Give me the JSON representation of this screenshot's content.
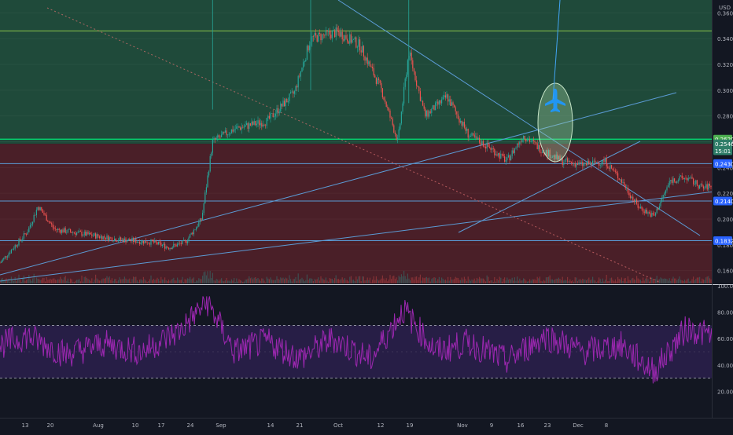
{
  "price_axis": {
    "unit": "USD",
    "ticks": [
      "0.3600",
      "0.3400",
      "0.3200",
      "0.3000",
      "0.2800",
      "0.2600",
      "0.2400",
      "0.2200",
      "0.2000",
      "0.1800",
      "0.1600"
    ],
    "badges": [
      {
        "price": 0.262,
        "text": "0.2620",
        "color": "#4caf50"
      },
      {
        "price": 0.2584,
        "text": "0.2546",
        "color": "#2e7d68"
      },
      {
        "price": 0.253,
        "text": "15:01",
        "color": "#2e7d68"
      },
      {
        "price": 0.243,
        "text": "0.2430",
        "color": "#2962ff"
      },
      {
        "price": 0.214,
        "text": "0.2140",
        "color": "#2962ff"
      },
      {
        "price": 0.1832,
        "text": "0.1832",
        "color": "#2962ff"
      }
    ]
  },
  "rsi_axis": {
    "ticks": [
      "100.00",
      "80.00",
      "60.00",
      "40.00",
      "20.00"
    ]
  },
  "time_axis": {
    "labels": [
      "13",
      "20",
      "Aug",
      "10",
      "17",
      "24",
      "Sep",
      "14",
      "21",
      "Oct",
      "12",
      "19",
      "Nov",
      "9",
      "16",
      "23",
      "Dec",
      "8"
    ]
  },
  "chart_data": [
    {
      "type": "candlestick",
      "ylim": [
        0.15,
        0.37
      ],
      "horizontal_levels": [
        0.346,
        0.262,
        0.243,
        0.214,
        0.1832
      ],
      "zones": [
        {
          "from": 0.2584,
          "to": 0.37,
          "color": "#1f4a3a"
        },
        {
          "from": 0.15,
          "to": 0.2584,
          "color": "#4a1f28"
        }
      ],
      "series": [
        {
          "values": [
            {
              "x": "Jul 08",
              "y": 0.166
            },
            {
              "x": "Jul 13",
              "y": 0.19
            },
            {
              "x": "Jul 15",
              "y": 0.21
            },
            {
              "x": "Jul 18",
              "y": 0.192
            },
            {
              "x": "Jul 24",
              "y": 0.188
            },
            {
              "x": "Jul 30",
              "y": 0.184
            },
            {
              "x": "Aug 05",
              "y": 0.182
            },
            {
              "x": "Aug 08",
              "y": 0.178
            },
            {
              "x": "Aug 11",
              "y": 0.182
            },
            {
              "x": "Aug 14",
              "y": 0.2
            },
            {
              "x": "Aug 16",
              "y": 0.26
            },
            {
              "x": "Aug 20",
              "y": 0.27
            },
            {
              "x": "Aug 26",
              "y": 0.276
            },
            {
              "x": "Aug 31",
              "y": 0.298
            },
            {
              "x": "Sep 03",
              "y": 0.34
            },
            {
              "x": "Sep 08",
              "y": 0.345
            },
            {
              "x": "Sep 12",
              "y": 0.335
            },
            {
              "x": "Sep 16",
              "y": 0.3
            },
            {
              "x": "Sep 19",
              "y": 0.26
            },
            {
              "x": "Sep 21",
              "y": 0.33
            },
            {
              "x": "Sep 24",
              "y": 0.28
            },
            {
              "x": "Sep 28",
              "y": 0.295
            },
            {
              "x": "Oct 02",
              "y": 0.265
            },
            {
              "x": "Oct 06",
              "y": 0.255
            },
            {
              "x": "Oct 09",
              "y": 0.245
            },
            {
              "x": "Oct 12",
              "y": 0.265
            },
            {
              "x": "Oct 15",
              "y": 0.255
            },
            {
              "x": "Oct 19",
              "y": 0.245
            },
            {
              "x": "Oct 23",
              "y": 0.242
            },
            {
              "x": "Oct 27",
              "y": 0.245
            },
            {
              "x": "Oct 30",
              "y": 0.23
            },
            {
              "x": "Nov 02",
              "y": 0.21
            },
            {
              "x": "Nov 05",
              "y": 0.202
            },
            {
              "x": "Nov 08",
              "y": 0.23
            },
            {
              "x": "Nov 11",
              "y": 0.232
            },
            {
              "x": "Nov 14",
              "y": 0.224
            },
            {
              "x": "Nov 17",
              "y": 0.228
            },
            {
              "x": "Nov 19",
              "y": 0.26
            },
            {
              "x": "Nov 21",
              "y": 0.2546
            }
          ]
        }
      ]
    },
    {
      "type": "line",
      "ylim": [
        0,
        100
      ],
      "bands": [
        30,
        70
      ],
      "series": [
        {
          "values": [
            {
              "x": "Jul 08",
              "y": 55
            },
            {
              "x": "Jul 13",
              "y": 62
            },
            {
              "x": "Jul 20",
              "y": 48
            },
            {
              "x": "Jul 27",
              "y": 56
            },
            {
              "x": "Aug 03",
              "y": 50
            },
            {
              "x": "Aug 10",
              "y": 66
            },
            {
              "x": "Aug 15",
              "y": 88
            },
            {
              "x": "Aug 20",
              "y": 50
            },
            {
              "x": "Aug 26",
              "y": 58
            },
            {
              "x": "Sep 01",
              "y": 45
            },
            {
              "x": "Sep 07",
              "y": 60
            },
            {
              "x": "Sep 14",
              "y": 44
            },
            {
              "x": "Sep 20",
              "y": 82
            },
            {
              "x": "Sep 26",
              "y": 50
            },
            {
              "x": "Oct 02",
              "y": 57
            },
            {
              "x": "Oct 09",
              "y": 43
            },
            {
              "x": "Oct 16",
              "y": 62
            },
            {
              "x": "Oct 23",
              "y": 50
            },
            {
              "x": "Oct 30",
              "y": 55
            },
            {
              "x": "Nov 05",
              "y": 35
            },
            {
              "x": "Nov 11",
              "y": 68
            },
            {
              "x": "Nov 17",
              "y": 60
            },
            {
              "x": "Nov 21",
              "y": 55
            }
          ]
        }
      ]
    }
  ]
}
